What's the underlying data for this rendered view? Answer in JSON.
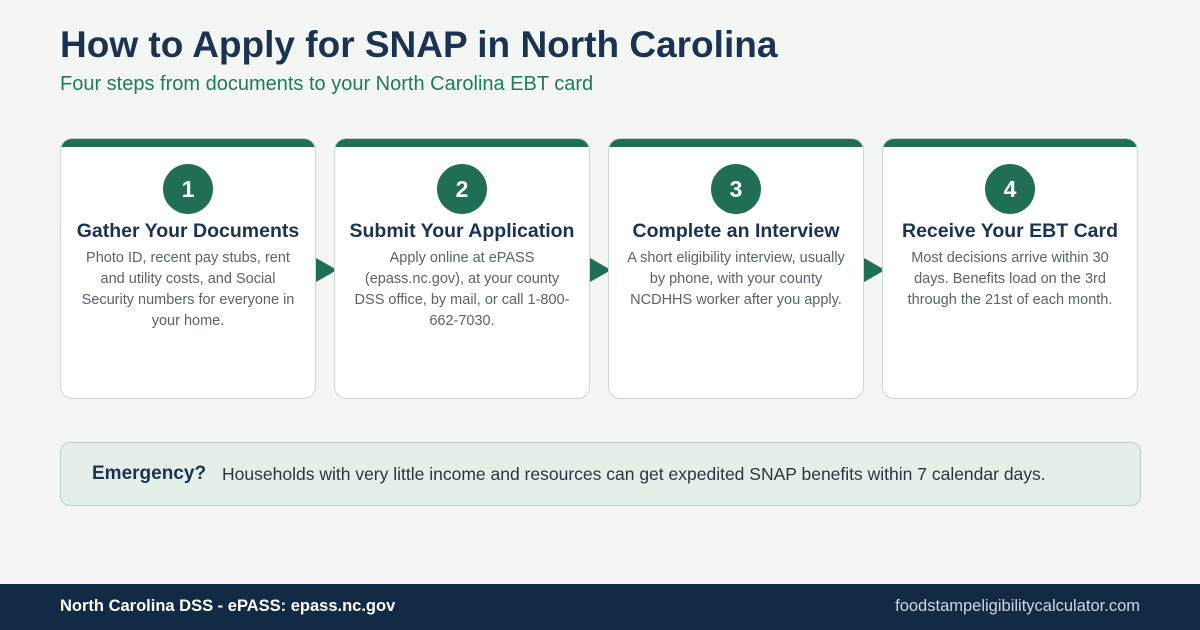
{
  "header": {
    "title": "How to Apply for SNAP in North Carolina",
    "subtitle": "Four steps from documents to your North Carolina EBT card"
  },
  "steps": [
    {
      "number": "1",
      "title": "Gather Your Documents",
      "description": "Photo ID, recent pay stubs, rent and utility costs, and Social Security numbers for everyone in your home."
    },
    {
      "number": "2",
      "title": "Submit Your Application",
      "description": "Apply online at ePASS (epass.nc.gov), at your county DSS office, by mail, or call 1-800-662-7030."
    },
    {
      "number": "3",
      "title": "Complete an Interview",
      "description": "A short eligibility interview, usually by phone, with your county NCDHHS worker after you apply."
    },
    {
      "number": "4",
      "title": "Receive Your EBT Card",
      "description": "Most decisions arrive within 30 days. Benefits load on the 3rd through the 21st of each month."
    }
  ],
  "callout": {
    "label": "Emergency?",
    "text": "Households with very little income and resources can get expedited SNAP benefits within 7 calendar days."
  },
  "footer": {
    "left": "North Carolina DSS - ePASS: epass.nc.gov",
    "right": "foodstampeligibilitycalculator.com"
  },
  "colors": {
    "accent": "#1f6e55",
    "heading": "#1a3352",
    "subtitle": "#217a5b",
    "footer_bg": "#132a45",
    "callout_bg": "#e4efe7"
  },
  "icons": [
    "arrow-right-icon"
  ]
}
